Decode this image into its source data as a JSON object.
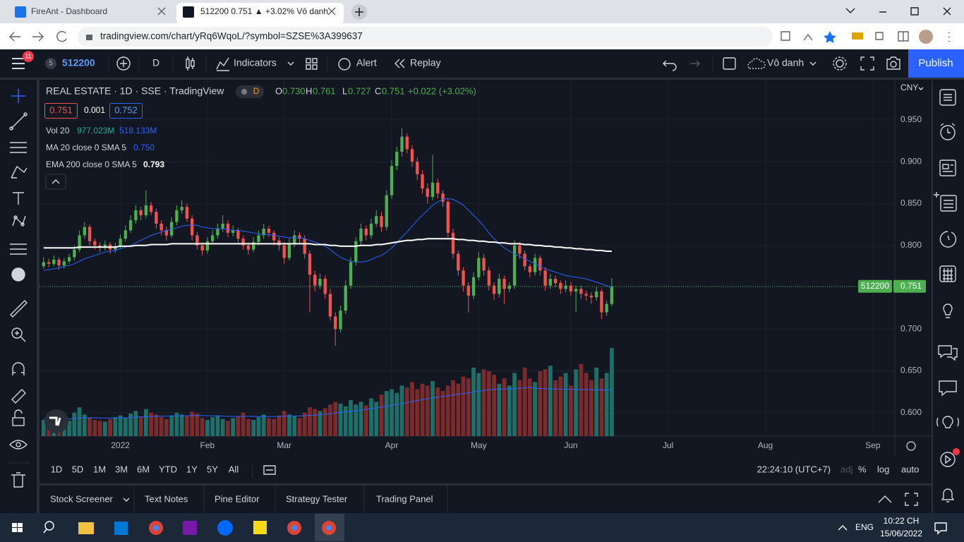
{
  "browser": {
    "tabs": [
      "FireAnt - Dashboard",
      "512200 0.751 ▲ +3.02% Vô danh"
    ],
    "url": "tradingview.com/chart/yRq6WqoL/?symbol=SZSE%3A399637"
  },
  "toolbar": {
    "badge": "11",
    "symbol_count": "5",
    "symbol": "512200",
    "interval": "D",
    "indicators": "Indicators",
    "alert": "Alert",
    "replay": "Replay",
    "layout": "Vô danh",
    "publish": "Publish"
  },
  "legend": {
    "title": "REAL ESTATE · 1D · SSE · TradingView",
    "flag": "D",
    "ohlc": [
      "O",
      "0.730",
      "H",
      "0.761",
      "L",
      "0.727",
      "C",
      "0.751",
      "+0.022 (+3.02%)"
    ],
    "bid": "0.751",
    "spread": "0.001",
    "ask": "0.752",
    "volume": {
      "label": "Vol 20",
      "value": "977.023M",
      "ma": "518.133M"
    },
    "ma": {
      "label": "MA 20 close 0 SMA 5",
      "value": "0.750"
    },
    "ema": {
      "label": "EMA 200 close 0 SMA 5",
      "value": "0.793"
    }
  },
  "chart": {
    "type": "candlestick",
    "currency": "CNY",
    "grid": true,
    "up_color": "#4caf50",
    "down_color": "#ef5350",
    "volume_up_color": "#1f6f69",
    "volume_down_color": "#7c2b2d",
    "ma_color": "#2962ff",
    "ema_color": "#ffffff",
    "volume_ma_color": "#2962ff",
    "xlim": [
      -0.8,
      166.3
    ],
    "ylim": [
      0.572,
      0.998
    ],
    "vlim": [
      0,
      3950
    ],
    "yticks": [
      {
        "value": 0.95,
        "label": "0.950"
      },
      {
        "value": 0.9,
        "label": "0.900"
      },
      {
        "value": 0.85,
        "label": "0.850"
      },
      {
        "value": 0.8,
        "label": "0.800"
      },
      {
        "value": 0.75,
        "label": "0.750"
      },
      {
        "value": 0.7,
        "label": "0.700"
      },
      {
        "value": 0.65,
        "label": "0.650"
      },
      {
        "value": 0.6,
        "label": "0.600"
      }
    ],
    "xticks": [
      {
        "value": 15,
        "label": "2022"
      },
      {
        "value": 32,
        "label": "Feb"
      },
      {
        "value": 47,
        "label": "Mar"
      },
      {
        "value": 68,
        "label": "Apr"
      },
      {
        "value": 85,
        "label": "May"
      },
      {
        "value": 103,
        "label": "Jun"
      },
      {
        "value": 122,
        "label": "Jul"
      },
      {
        "value": 141,
        "label": "Aug"
      },
      {
        "value": 162,
        "label": "Sep"
      }
    ],
    "last_symbol_label": "512200",
    "last_price_label": "0.751",
    "ohlc": [
      [
        0.775,
        0.786,
        0.772,
        0.78
      ],
      [
        0.78,
        0.784,
        0.774,
        0.778
      ],
      [
        0.778,
        0.788,
        0.775,
        0.783
      ],
      [
        0.783,
        0.786,
        0.771,
        0.776
      ],
      [
        0.776,
        0.785,
        0.772,
        0.781
      ],
      [
        0.781,
        0.79,
        0.778,
        0.786
      ],
      [
        0.786,
        0.8,
        0.782,
        0.795
      ],
      [
        0.795,
        0.818,
        0.792,
        0.812
      ],
      [
        0.812,
        0.828,
        0.808,
        0.822
      ],
      [
        0.822,
        0.825,
        0.8,
        0.805
      ],
      [
        0.805,
        0.808,
        0.795,
        0.8
      ],
      [
        0.8,
        0.804,
        0.792,
        0.797
      ],
      [
        0.797,
        0.806,
        0.794,
        0.801
      ],
      [
        0.801,
        0.804,
        0.79,
        0.795
      ],
      [
        0.795,
        0.803,
        0.791,
        0.799
      ],
      [
        0.799,
        0.813,
        0.796,
        0.808
      ],
      [
        0.808,
        0.824,
        0.805,
        0.818
      ],
      [
        0.818,
        0.836,
        0.815,
        0.83
      ],
      [
        0.83,
        0.848,
        0.826,
        0.842
      ],
      [
        0.842,
        0.846,
        0.83,
        0.836
      ],
      [
        0.836,
        0.866,
        0.832,
        0.848
      ],
      [
        0.848,
        0.852,
        0.836,
        0.84
      ],
      [
        0.84,
        0.844,
        0.82,
        0.826
      ],
      [
        0.826,
        0.83,
        0.812,
        0.818
      ],
      [
        0.818,
        0.822,
        0.806,
        0.812
      ],
      [
        0.812,
        0.834,
        0.809,
        0.828
      ],
      [
        0.828,
        0.848,
        0.824,
        0.842
      ],
      [
        0.842,
        0.854,
        0.838,
        0.846
      ],
      [
        0.846,
        0.85,
        0.828,
        0.832
      ],
      [
        0.832,
        0.836,
        0.806,
        0.812
      ],
      [
        0.812,
        0.816,
        0.795,
        0.8
      ],
      [
        0.8,
        0.804,
        0.788,
        0.794
      ],
      [
        0.794,
        0.81,
        0.79,
        0.805
      ],
      [
        0.805,
        0.818,
        0.801,
        0.812
      ],
      [
        0.812,
        0.826,
        0.808,
        0.82
      ],
      [
        0.82,
        0.836,
        0.816,
        0.826
      ],
      [
        0.826,
        0.83,
        0.81,
        0.815
      ],
      [
        0.815,
        0.824,
        0.811,
        0.818
      ],
      [
        0.818,
        0.821,
        0.803,
        0.808
      ],
      [
        0.808,
        0.812,
        0.795,
        0.8
      ],
      [
        0.8,
        0.804,
        0.789,
        0.795
      ],
      [
        0.795,
        0.81,
        0.792,
        0.804
      ],
      [
        0.804,
        0.818,
        0.8,
        0.812
      ],
      [
        0.812,
        0.826,
        0.808,
        0.82
      ],
      [
        0.82,
        0.824,
        0.81,
        0.815
      ],
      [
        0.815,
        0.818,
        0.8,
        0.806
      ],
      [
        0.806,
        0.81,
        0.794,
        0.8
      ],
      [
        0.8,
        0.804,
        0.778,
        0.785
      ],
      [
        0.785,
        0.808,
        0.782,
        0.802
      ],
      [
        0.802,
        0.818,
        0.798,
        0.812
      ],
      [
        0.812,
        0.816,
        0.802,
        0.808
      ],
      [
        0.808,
        0.812,
        0.784,
        0.79
      ],
      [
        0.79,
        0.794,
        0.72,
        0.765
      ],
      [
        0.765,
        0.77,
        0.745,
        0.752
      ],
      [
        0.752,
        0.766,
        0.748,
        0.76
      ],
      [
        0.76,
        0.764,
        0.736,
        0.742
      ],
      [
        0.742,
        0.748,
        0.71,
        0.715
      ],
      [
        0.715,
        0.72,
        0.68,
        0.7
      ],
      [
        0.7,
        0.728,
        0.696,
        0.722
      ],
      [
        0.722,
        0.758,
        0.718,
        0.752
      ],
      [
        0.752,
        0.786,
        0.748,
        0.78
      ],
      [
        0.78,
        0.81,
        0.776,
        0.805
      ],
      [
        0.805,
        0.826,
        0.8,
        0.82
      ],
      [
        0.82,
        0.824,
        0.806,
        0.812
      ],
      [
        0.812,
        0.832,
        0.808,
        0.826
      ],
      [
        0.826,
        0.842,
        0.822,
        0.835
      ],
      [
        0.835,
        0.84,
        0.816,
        0.822
      ],
      [
        0.822,
        0.866,
        0.818,
        0.86
      ],
      [
        0.86,
        0.902,
        0.856,
        0.895
      ],
      [
        0.895,
        0.918,
        0.89,
        0.912
      ],
      [
        0.912,
        0.94,
        0.906,
        0.93
      ],
      [
        0.93,
        0.934,
        0.91,
        0.915
      ],
      [
        0.915,
        0.92,
        0.894,
        0.9
      ],
      [
        0.9,
        0.905,
        0.878,
        0.885
      ],
      [
        0.885,
        0.89,
        0.862,
        0.868
      ],
      [
        0.868,
        0.874,
        0.85,
        0.858
      ],
      [
        0.858,
        0.908,
        0.854,
        0.875
      ],
      [
        0.875,
        0.88,
        0.856,
        0.862
      ],
      [
        0.862,
        0.866,
        0.846,
        0.852
      ],
      [
        0.852,
        0.856,
        0.81,
        0.815
      ],
      [
        0.815,
        0.82,
        0.784,
        0.79
      ],
      [
        0.79,
        0.794,
        0.764,
        0.77
      ],
      [
        0.77,
        0.774,
        0.745,
        0.752
      ],
      [
        0.752,
        0.756,
        0.72,
        0.74
      ],
      [
        0.74,
        0.768,
        0.736,
        0.762
      ],
      [
        0.762,
        0.792,
        0.758,
        0.785
      ],
      [
        0.785,
        0.79,
        0.764,
        0.77
      ],
      [
        0.77,
        0.774,
        0.746,
        0.752
      ],
      [
        0.752,
        0.756,
        0.735,
        0.742
      ],
      [
        0.742,
        0.766,
        0.738,
        0.76
      ],
      [
        0.76,
        0.764,
        0.73,
        0.748
      ],
      [
        0.748,
        0.756,
        0.744,
        0.752
      ],
      [
        0.752,
        0.806,
        0.748,
        0.8
      ],
      [
        0.8,
        0.804,
        0.784,
        0.79
      ],
      [
        0.79,
        0.794,
        0.77,
        0.775
      ],
      [
        0.775,
        0.778,
        0.762,
        0.768
      ],
      [
        0.768,
        0.79,
        0.764,
        0.785
      ],
      [
        0.785,
        0.788,
        0.764,
        0.77
      ],
      [
        0.77,
        0.774,
        0.746,
        0.752
      ],
      [
        0.752,
        0.766,
        0.748,
        0.76
      ],
      [
        0.76,
        0.764,
        0.75,
        0.755
      ],
      [
        0.755,
        0.758,
        0.742,
        0.748
      ],
      [
        0.748,
        0.758,
        0.744,
        0.752
      ],
      [
        0.752,
        0.756,
        0.74,
        0.745
      ],
      [
        0.745,
        0.752,
        0.72,
        0.748
      ],
      [
        0.748,
        0.752,
        0.736,
        0.742
      ],
      [
        0.742,
        0.746,
        0.734,
        0.74
      ],
      [
        0.74,
        0.744,
        0.73,
        0.738
      ],
      [
        0.738,
        0.75,
        0.734,
        0.745
      ],
      [
        0.745,
        0.748,
        0.712,
        0.72
      ],
      [
        0.72,
        0.734,
        0.716,
        0.73
      ],
      [
        0.73,
        0.761,
        0.727,
        0.751
      ]
    ],
    "volume": [
      180,
      160,
      190,
      220,
      150,
      170,
      260,
      320,
      240,
      200,
      180,
      170,
      160,
      190,
      210,
      230,
      200,
      250,
      280,
      220,
      300,
      260,
      240,
      210,
      190,
      230,
      260,
      240,
      220,
      270,
      250,
      200,
      180,
      210,
      230,
      190,
      170,
      200,
      220,
      260,
      190,
      180,
      210,
      240,
      200,
      190,
      230,
      280,
      240,
      220,
      200,
      260,
      320,
      300,
      280,
      310,
      350,
      380,
      360,
      330,
      400,
      350,
      380,
      340,
      420,
      380,
      460,
      500,
      520,
      480,
      560,
      540,
      600,
      520,
      580,
      560,
      610,
      540,
      500,
      560,
      620,
      580,
      660,
      640,
      760,
      700,
      740,
      720,
      680,
      580,
      640,
      560,
      700,
      620,
      760,
      640,
      600,
      720,
      740,
      780,
      620,
      660,
      700,
      560,
      740,
      800,
      700,
      620,
      760,
      640,
      700,
      977.023
    ],
    "volume_ma": [
      195,
      194,
      193,
      194,
      192,
      191,
      195,
      200,
      202,
      203,
      202,
      201,
      200,
      201,
      202,
      203,
      204,
      206,
      210,
      212,
      215,
      218,
      220,
      221,
      222,
      223,
      224,
      225,
      226,
      228,
      229,
      228,
      226,
      225,
      224,
      222,
      220,
      219,
      218,
      220,
      221,
      219,
      218,
      219,
      218,
      217,
      218,
      222,
      224,
      224,
      224,
      226,
      230,
      234,
      238,
      242,
      248,
      256,
      262,
      268,
      276,
      282,
      290,
      296,
      304,
      312,
      322,
      332,
      342,
      352,
      362,
      372,
      384,
      394,
      404,
      414,
      424,
      432,
      440,
      448,
      456,
      464,
      472,
      480,
      490,
      498,
      506,
      512,
      518,
      520,
      522,
      524,
      528,
      532,
      536,
      538,
      530,
      528,
      526,
      524,
      522,
      520,
      520,
      518,
      518,
      516,
      516,
      514,
      514,
      512,
      510,
      518.133
    ],
    "ma": [
      0.77,
      0.771,
      0.772,
      0.773,
      0.775,
      0.776,
      0.778,
      0.781,
      0.784,
      0.786,
      0.788,
      0.79,
      0.792,
      0.793,
      0.794,
      0.796,
      0.798,
      0.8,
      0.803,
      0.806,
      0.809,
      0.812,
      0.814,
      0.816,
      0.818,
      0.819,
      0.821,
      0.823,
      0.824,
      0.824,
      0.824,
      0.822,
      0.821,
      0.82,
      0.82,
      0.82,
      0.819,
      0.818,
      0.818,
      0.817,
      0.816,
      0.815,
      0.814,
      0.813,
      0.813,
      0.812,
      0.811,
      0.81,
      0.809,
      0.809,
      0.809,
      0.808,
      0.806,
      0.804,
      0.802,
      0.799,
      0.795,
      0.79,
      0.786,
      0.783,
      0.781,
      0.78,
      0.78,
      0.781,
      0.783,
      0.786,
      0.788,
      0.792,
      0.797,
      0.803,
      0.81,
      0.816,
      0.823,
      0.83,
      0.836,
      0.842,
      0.848,
      0.852,
      0.855,
      0.856,
      0.855,
      0.852,
      0.848,
      0.842,
      0.836,
      0.83,
      0.823,
      0.815,
      0.808,
      0.802,
      0.797,
      0.793,
      0.79,
      0.787,
      0.784,
      0.781,
      0.778,
      0.775,
      0.772,
      0.77,
      0.768,
      0.766,
      0.764,
      0.763,
      0.762,
      0.761,
      0.76,
      0.758,
      0.756,
      0.754,
      0.752,
      0.75
    ],
    "ema": [
      0.797,
      0.797,
      0.797,
      0.797,
      0.797,
      0.797,
      0.797,
      0.798,
      0.798,
      0.798,
      0.798,
      0.798,
      0.798,
      0.798,
      0.798,
      0.799,
      0.799,
      0.799,
      0.8,
      0.8,
      0.8,
      0.801,
      0.801,
      0.801,
      0.801,
      0.802,
      0.802,
      0.802,
      0.802,
      0.802,
      0.802,
      0.802,
      0.802,
      0.802,
      0.802,
      0.802,
      0.802,
      0.802,
      0.802,
      0.802,
      0.802,
      0.802,
      0.802,
      0.802,
      0.802,
      0.802,
      0.802,
      0.802,
      0.802,
      0.802,
      0.802,
      0.802,
      0.802,
      0.801,
      0.801,
      0.801,
      0.8,
      0.8,
      0.799,
      0.799,
      0.799,
      0.799,
      0.8,
      0.8,
      0.8,
      0.801,
      0.801,
      0.802,
      0.803,
      0.804,
      0.805,
      0.806,
      0.806,
      0.807,
      0.807,
      0.808,
      0.808,
      0.808,
      0.808,
      0.808,
      0.808,
      0.807,
      0.807,
      0.806,
      0.806,
      0.805,
      0.805,
      0.804,
      0.804,
      0.803,
      0.803,
      0.802,
      0.802,
      0.802,
      0.801,
      0.801,
      0.8,
      0.8,
      0.799,
      0.799,
      0.798,
      0.798,
      0.797,
      0.797,
      0.796,
      0.796,
      0.795,
      0.795,
      0.794,
      0.794,
      0.793,
      0.793
    ]
  },
  "bottom": {
    "ranges": [
      "1D",
      "5D",
      "1M",
      "3M",
      "6M",
      "YTD",
      "1Y",
      "5Y",
      "All"
    ],
    "clock": "22:24:10 (UTC+7)",
    "options": [
      "adj",
      "%",
      "log",
      "auto"
    ]
  },
  "panels": [
    "Stock Screener",
    "Text Notes",
    "Pine Editor",
    "Strategy Tester",
    "Trading Panel"
  ],
  "taskbar": {
    "lang": "ENG",
    "time": "10:22 CH",
    "date": "15/06/2022"
  }
}
